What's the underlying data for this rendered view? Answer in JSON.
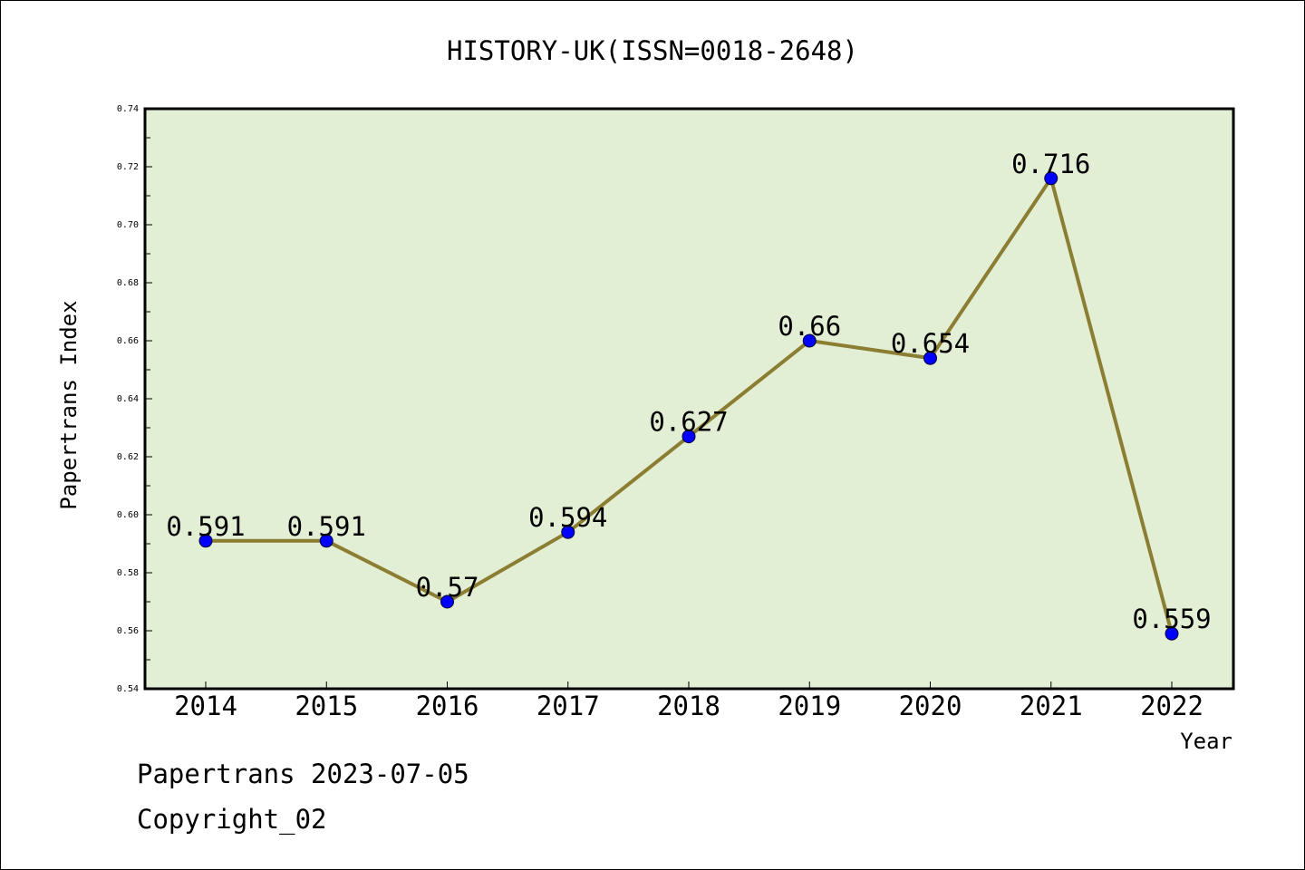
{
  "chart_data": {
    "type": "line",
    "title": "HISTORY-UK(ISSN=0018-2648)",
    "xlabel": "Year",
    "ylabel": "Papertrans Index",
    "categories": [
      "2014",
      "2015",
      "2016",
      "2017",
      "2018",
      "2019",
      "2020",
      "2021",
      "2022"
    ],
    "series": [
      {
        "values": [
          0.591,
          0.591,
          0.57,
          0.594,
          0.627,
          0.66,
          0.654,
          0.716,
          0.559
        ]
      }
    ],
    "data_labels": [
      "0.591",
      "0.591",
      "0.57",
      "0.594",
      "0.627",
      "0.66",
      "0.654",
      "0.716",
      "0.559"
    ],
    "ylim": [
      0.54,
      0.74
    ],
    "yticks": [
      "0.54",
      "0.56",
      "0.58",
      "0.60",
      "0.62",
      "0.64",
      "0.66",
      "0.68",
      "0.70",
      "0.72",
      "0.74"
    ],
    "grid": false,
    "legend": "none",
    "colors": {
      "plot_background": "#e2efd4",
      "line": "#8b7d32",
      "marker": "#0000ff"
    }
  },
  "footer": {
    "date_line": "Papertrans 2023-07-05",
    "copyright_line": "Copyright_02"
  }
}
